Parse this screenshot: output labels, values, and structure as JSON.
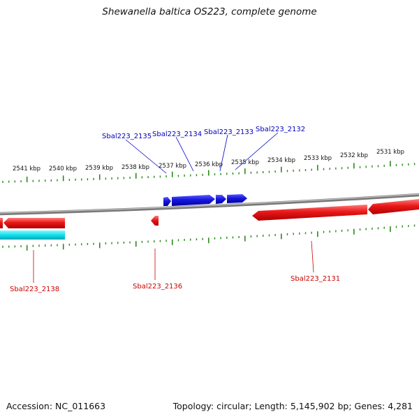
{
  "title": "Shewanella baltica OS223, complete genome",
  "footer": {
    "accession": "Accession: NC_011663",
    "stats": "Topology: circular; Length: 5,145,902 bp; Genes: 4,281"
  },
  "colors": {
    "forward_gene": "#1010cc",
    "reverse_gene": "#e01010",
    "rna_feature": "#00d8e0",
    "backbone": "#808080",
    "ticks": "#2a8a1a"
  },
  "ruler": {
    "labels": [
      "2541 kbp",
      "2540 kbp",
      "2539 kbp",
      "2538 kbp",
      "2537 kbp",
      "2536 kbp",
      "2535 kbp",
      "2534 kbp",
      "2533 kbp",
      "2532 kbp",
      "2531 kbp"
    ]
  },
  "gene_labels": {
    "top": [
      "Sbal223_2135",
      "Sbal223_2134",
      "Sbal223_2133",
      "Sbal223_2132"
    ],
    "bottom": [
      "Sbal223_2138",
      "Sbal223_2136",
      "Sbal223_2131"
    ]
  }
}
